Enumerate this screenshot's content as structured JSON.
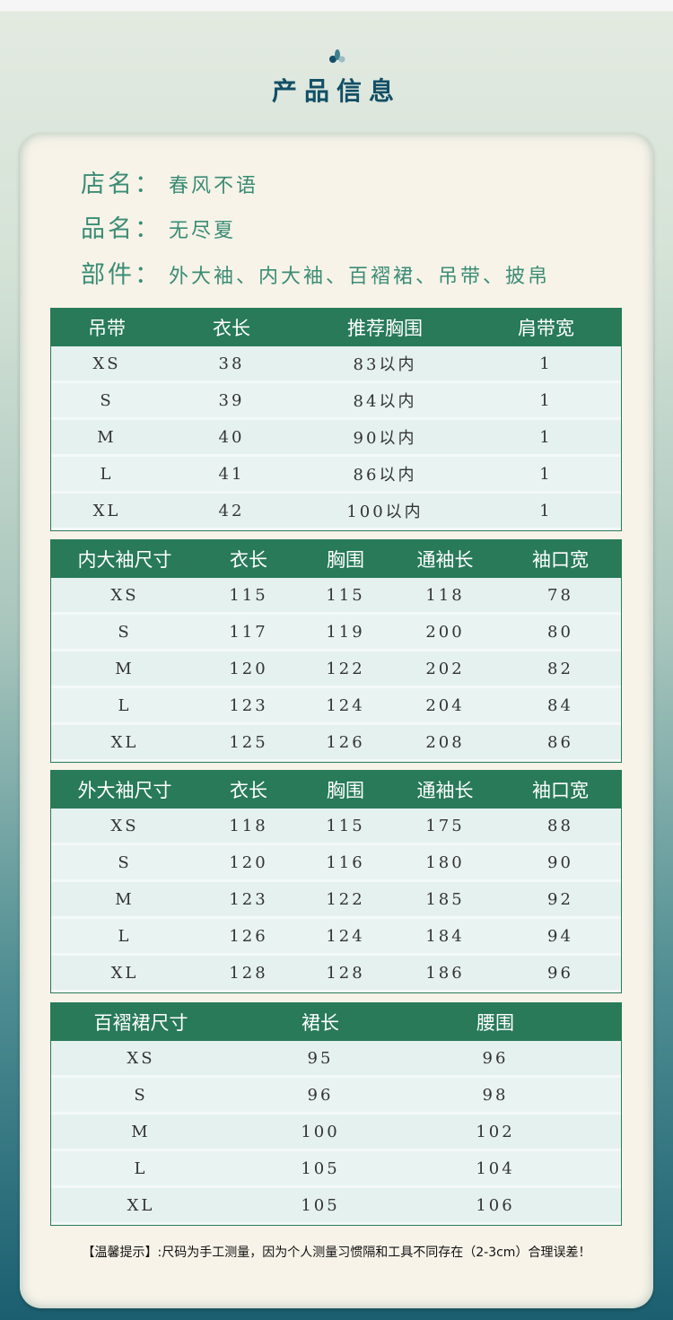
{
  "header": {
    "title": "产品信息",
    "logo_icon": "leaf-drops-icon"
  },
  "info": [
    {
      "label": "店名：",
      "value": "春风不语"
    },
    {
      "label": "品名：",
      "value": "无尽夏"
    },
    {
      "label": "部件：",
      "value": "外大袖、内大袖、百褶裙、吊带、披帛"
    }
  ],
  "tables": [
    {
      "headers": [
        "吊带",
        "衣长",
        "推荐胸围",
        "肩带宽"
      ],
      "rows": [
        [
          "XS",
          "38",
          "83以内",
          "1"
        ],
        [
          "S",
          "39",
          "84以内",
          "1"
        ],
        [
          "M",
          "40",
          "90以内",
          "1"
        ],
        [
          "L",
          "41",
          "86以内",
          "1"
        ],
        [
          "XL",
          "42",
          "100以内",
          "1"
        ]
      ]
    },
    {
      "headers": [
        "内大袖尺寸",
        "衣长",
        "胸围",
        "通袖长",
        "袖口宽"
      ],
      "rows": [
        [
          "XS",
          "115",
          "115",
          "118",
          "78"
        ],
        [
          "S",
          "117",
          "119",
          "200",
          "80"
        ],
        [
          "M",
          "120",
          "122",
          "202",
          "82"
        ],
        [
          "L",
          "123",
          "124",
          "204",
          "84"
        ],
        [
          "XL",
          "125",
          "126",
          "208",
          "86"
        ]
      ]
    },
    {
      "headers": [
        "外大袖尺寸",
        "衣长",
        "胸围",
        "通袖长",
        "袖口宽"
      ],
      "rows": [
        [
          "XS",
          "118",
          "115",
          "175",
          "88"
        ],
        [
          "S",
          "120",
          "116",
          "180",
          "90"
        ],
        [
          "M",
          "123",
          "122",
          "185",
          "92"
        ],
        [
          "L",
          "126",
          "124",
          "184",
          "94"
        ],
        [
          "XL",
          "128",
          "128",
          "186",
          "96"
        ]
      ]
    },
    {
      "headers": [
        "百褶裙尺寸",
        "裙长",
        "腰围"
      ],
      "rows": [
        [
          "XS",
          "95",
          "96"
        ],
        [
          "S",
          "96",
          "98"
        ],
        [
          "M",
          "100",
          "102"
        ],
        [
          "L",
          "105",
          "104"
        ],
        [
          "XL",
          "105",
          "106"
        ]
      ]
    }
  ],
  "note": "【温馨提示】:尺码为手工测量，因为个人测量习惯隔和工具不同存在（2-3cm）合理误差！",
  "colors": {
    "header_green": "#287a59",
    "title_blue": "#124f66",
    "info_green": "#3b8c75",
    "card": "#f7f3e9"
  }
}
